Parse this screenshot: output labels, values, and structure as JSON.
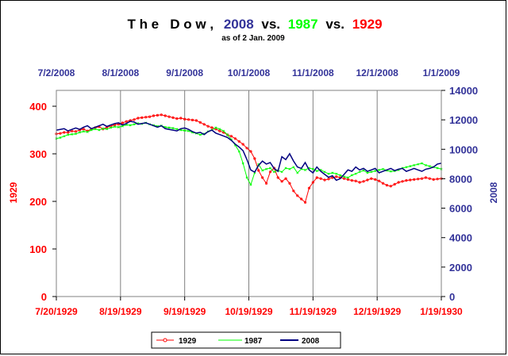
{
  "chart_data": {
    "type": "line",
    "title": {
      "prefix": "T h e   D o w ,",
      "year2008": "2008",
      "vs1": "vs.",
      "year1987": "1987",
      "vs2": "vs.",
      "year1929": "1929"
    },
    "subtitle": "as of 2 Jan. 2009",
    "left_axis": {
      "label": "1929",
      "range": [
        0,
        400
      ],
      "ticks": [
        "0",
        "100",
        "200",
        "300",
        "400"
      ],
      "color": "#ff0000"
    },
    "right_axis": {
      "label": "2008",
      "range": [
        0,
        14000
      ],
      "ticks": [
        "0",
        "2000",
        "4000",
        "6000",
        "8000",
        "10000",
        "12000",
        "14000"
      ],
      "color": "#333399"
    },
    "top_axis": {
      "ticks": [
        "7/2/2008",
        "8/1/2008",
        "9/1/2008",
        "10/1/2008",
        "11/1/2008",
        "12/1/2008",
        "1/1/2009"
      ],
      "color": "#333399"
    },
    "bottom_axis": {
      "ticks": [
        "7/20/1929",
        "8/19/1929",
        "9/19/1929",
        "10/19/1929",
        "11/19/1929",
        "12/19/1929",
        "1/19/1930"
      ],
      "color": "#ff0000"
    },
    "grid": "vertical",
    "legend_position": "bottom",
    "series": [
      {
        "name": "1929",
        "color": "#ff0000",
        "axis": "left",
        "marker": "circle",
        "values": [
          342,
          343,
          345,
          345,
          348,
          347,
          350,
          352,
          348,
          352,
          355,
          357,
          352,
          356,
          358,
          361,
          362,
          365,
          368,
          370,
          372,
          375,
          376,
          377,
          378,
          380,
          381,
          382,
          380,
          378,
          376,
          374,
          375,
          373,
          372,
          371,
          370,
          366,
          362,
          358,
          355,
          352,
          348,
          345,
          340,
          337,
          332,
          326,
          320,
          312,
          305,
          290,
          265,
          250,
          238,
          262,
          270,
          250,
          242,
          248,
          238,
          222,
          212,
          205,
          198,
          228,
          240,
          250,
          248,
          245,
          247,
          250,
          252,
          250,
          248,
          246,
          244,
          243,
          240,
          242,
          245,
          248,
          246,
          243,
          238,
          234,
          232,
          236,
          240,
          242,
          244,
          245,
          246,
          247,
          248,
          250,
          248,
          246,
          247,
          248
        ]
      },
      {
        "name": "1987",
        "color": "#00ff00",
        "axis": "left",
        "marker": "x",
        "values": [
          332,
          334,
          337,
          340,
          341,
          342,
          345,
          347,
          346,
          350,
          352,
          350,
          353,
          352,
          355,
          357,
          356,
          358,
          361,
          360,
          362,
          364,
          363,
          365,
          362,
          360,
          358,
          359,
          356,
          355,
          354,
          352,
          350,
          349,
          348,
          345,
          343,
          340,
          342,
          347,
          350,
          355,
          352,
          348,
          340,
          330,
          318,
          305,
          280,
          250,
          235,
          260,
          278,
          265,
          268,
          270,
          262,
          265,
          262,
          270,
          268,
          272,
          260,
          268,
          266,
          270,
          268,
          264,
          266,
          262,
          258,
          260,
          258,
          255,
          252,
          250,
          255,
          258,
          262,
          265,
          260,
          262,
          264,
          266,
          268,
          265,
          263,
          264,
          266,
          270,
          272,
          274,
          276,
          278,
          280,
          276,
          274,
          272,
          270,
          268
        ]
      },
      {
        "name": "2008",
        "color": "#000080",
        "axis": "right",
        "marker": "none",
        "values": [
          11300,
          11350,
          11400,
          11250,
          11350,
          11450,
          11350,
          11500,
          11600,
          11400,
          11500,
          11600,
          11700,
          11550,
          11650,
          11750,
          11800,
          11650,
          11750,
          11900,
          11850,
          11700,
          11750,
          11800,
          11700,
          11600,
          11500,
          11600,
          11400,
          11350,
          11300,
          11250,
          11400,
          11450,
          11350,
          11200,
          11100,
          11150,
          11000,
          11200,
          11300,
          11100,
          11000,
          10900,
          10800,
          10600,
          10350,
          10150,
          9900,
          9300,
          8600,
          8450,
          8900,
          9200,
          9000,
          9100,
          8700,
          8500,
          9500,
          9300,
          9700,
          9200,
          8800,
          8700,
          9100,
          8600,
          8400,
          8800,
          8500,
          8300,
          8100,
          8200,
          7900,
          8000,
          8300,
          8600,
          8500,
          8800,
          8600,
          8700,
          8500,
          8600,
          8700,
          8400,
          8500,
          8600,
          8700,
          8550,
          8650,
          8700,
          8500,
          8600,
          8700,
          8600,
          8500,
          8650,
          8700,
          8800,
          9000,
          9050
        ]
      }
    ]
  }
}
